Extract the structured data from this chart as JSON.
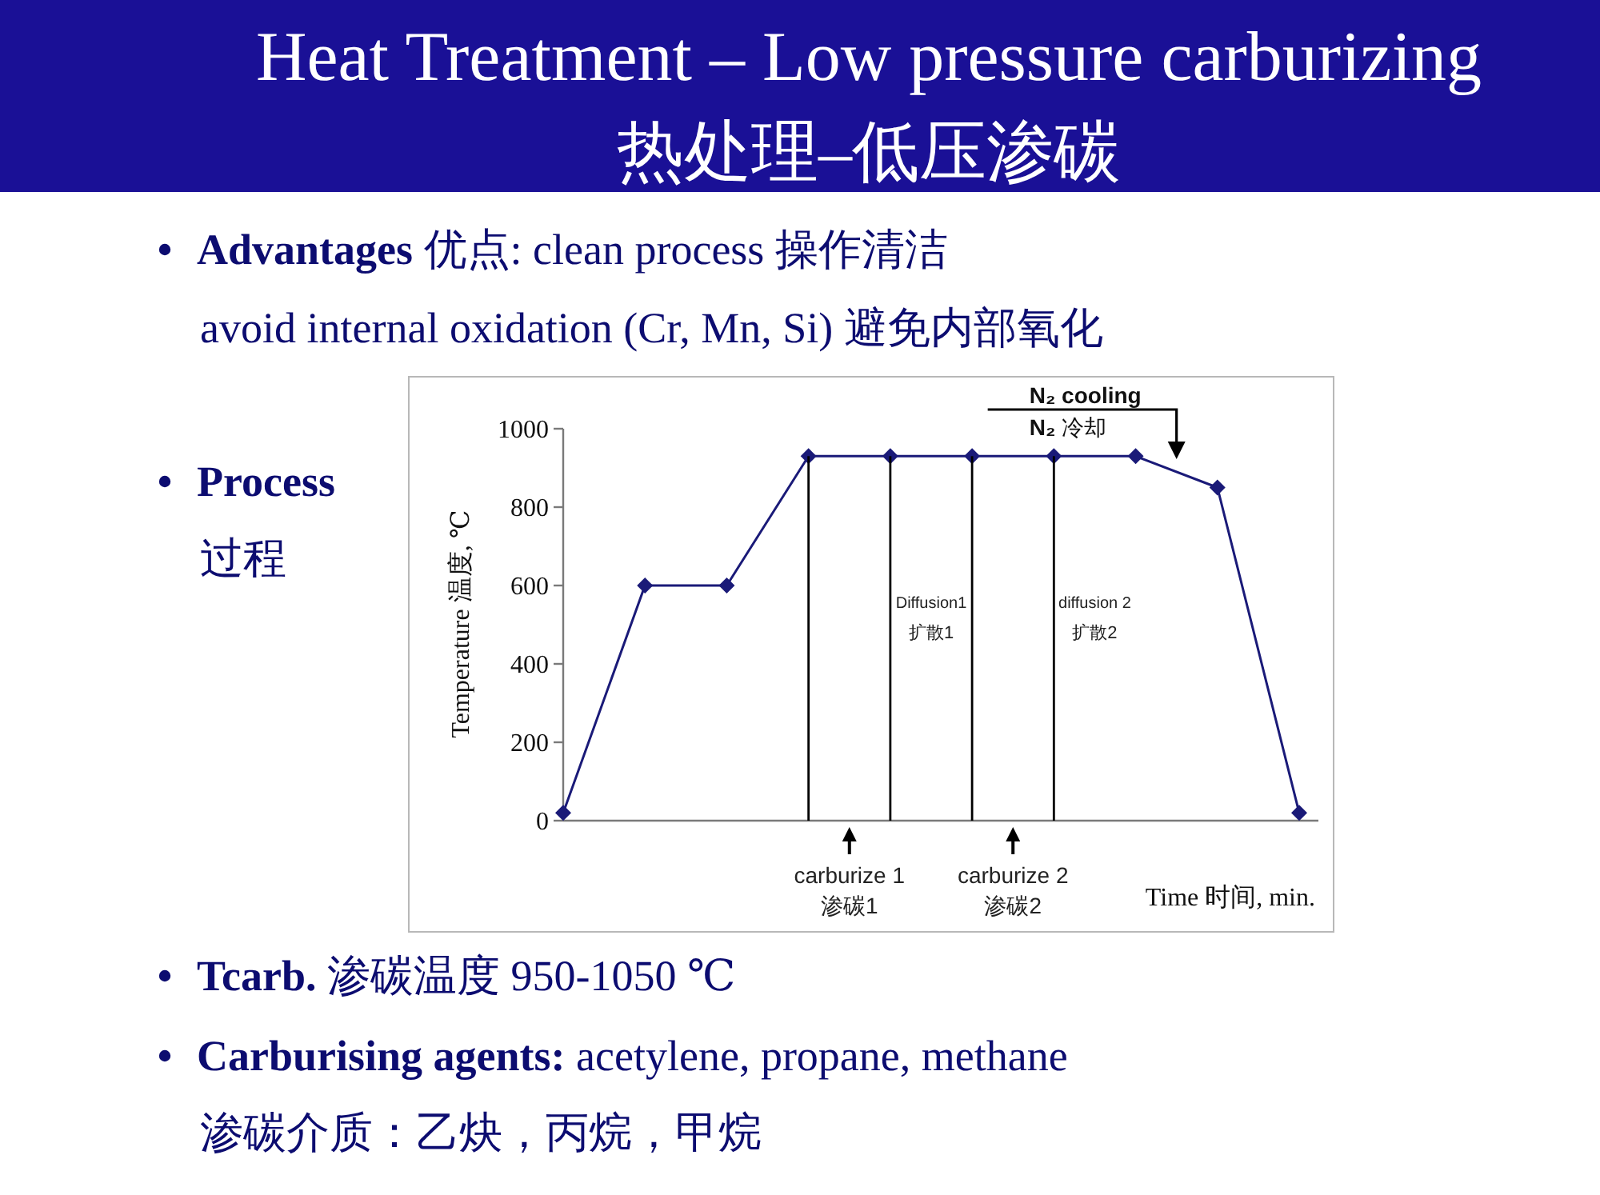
{
  "chart_data": {
    "type": "line",
    "title": "Heat Treatment – Low pressure carburizing",
    "subtitle": "热处理–低压渗碳",
    "xlabel": "Time 时间, min.",
    "ylabel": "Temperature 温度, ℃",
    "categories": [
      null,
      null,
      null,
      null,
      null,
      null,
      null,
      null,
      null,
      null
    ],
    "series": [
      {
        "color": "#1a1a78",
        "values": [
          20,
          600,
          600,
          930,
          930,
          930,
          930,
          930,
          850,
          20
        ]
      },
      {
        "type": "bar",
        "color": "#000000",
        "values": [
          null,
          null,
          null,
          930,
          930,
          930,
          930,
          null,
          null,
          null
        ]
      }
    ],
    "ylim": [
      0,
      1000
    ],
    "yticks": [
      0,
      200,
      400,
      600,
      800,
      1000
    ],
    "tick_labels": "y",
    "marker": "diamond",
    "line_style": "solid",
    "annotations": [
      "**Advantages** 优点: clean process 操作清洁",
      "avoid internal oxidation (Cr, Mn, Si) 避免内部氧化",
      "Process",
      "过程",
      "**Tcarb.** 渗碳温度 950-1050 ℃",
      "**Carburising agents:** acetylene, propane, methane",
      "渗碳介质：乙炔，丙烷，甲烷",
      "Diffusion1",
      "扩散1",
      "diffusion 2",
      "扩散2",
      "carburize 1",
      "渗碳1",
      "carburize 2",
      "渗碳2",
      "N₂ cooling",
      "**N₂** 冷却"
    ]
  }
}
